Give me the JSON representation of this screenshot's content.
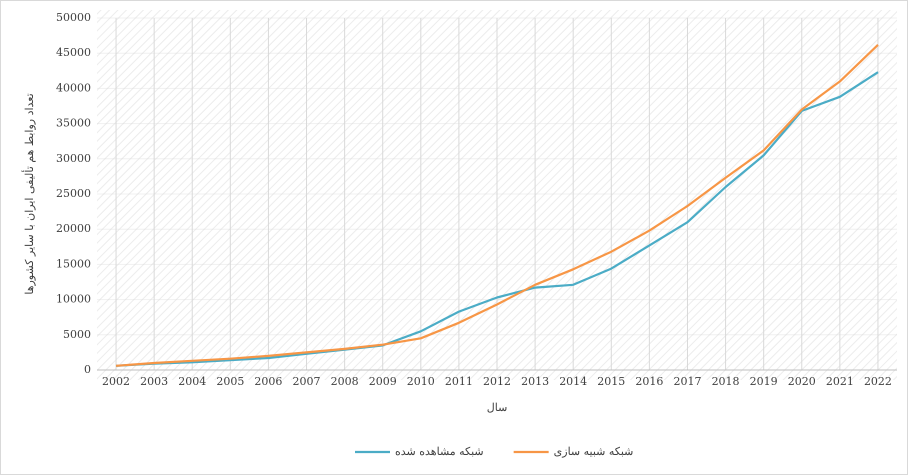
{
  "chart_data": {
    "type": "line",
    "x_label": "سال",
    "y_label": "تعداد روابط هم تألیفی ایران با سایر کشورها",
    "categories": [
      "2002",
      "2003",
      "2004",
      "2005",
      "2006",
      "2007",
      "2008",
      "2009",
      "2010",
      "2011",
      "2012",
      "2013",
      "2014",
      "2015",
      "2016",
      "2017",
      "2018",
      "2019",
      "2020",
      "2021",
      "2022"
    ],
    "series": [
      {
        "name": "شبکه مشاهده شده",
        "color": "#4bacc6",
        "values": [
          600,
          900,
          1100,
          1400,
          1700,
          2300,
          2900,
          3500,
          5500,
          8300,
          10300,
          11700,
          12100,
          14400,
          17700,
          21000,
          26000,
          30500,
          36800,
          38800,
          42300
        ]
      },
      {
        "name": "شبکه شبیه سازی",
        "color": "#f79646",
        "values": [
          600,
          1000,
          1300,
          1600,
          2000,
          2500,
          3000,
          3600,
          4500,
          6700,
          9300,
          12100,
          14300,
          16800,
          19800,
          23300,
          27300,
          31200,
          37000,
          41000,
          46200
        ]
      }
    ],
    "ylim": [
      0,
      50000
    ],
    "yticks": [
      0,
      5000,
      10000,
      15000,
      20000,
      25000,
      30000,
      35000,
      40000,
      45000,
      50000
    ],
    "grid": true,
    "legend": "bottom"
  }
}
